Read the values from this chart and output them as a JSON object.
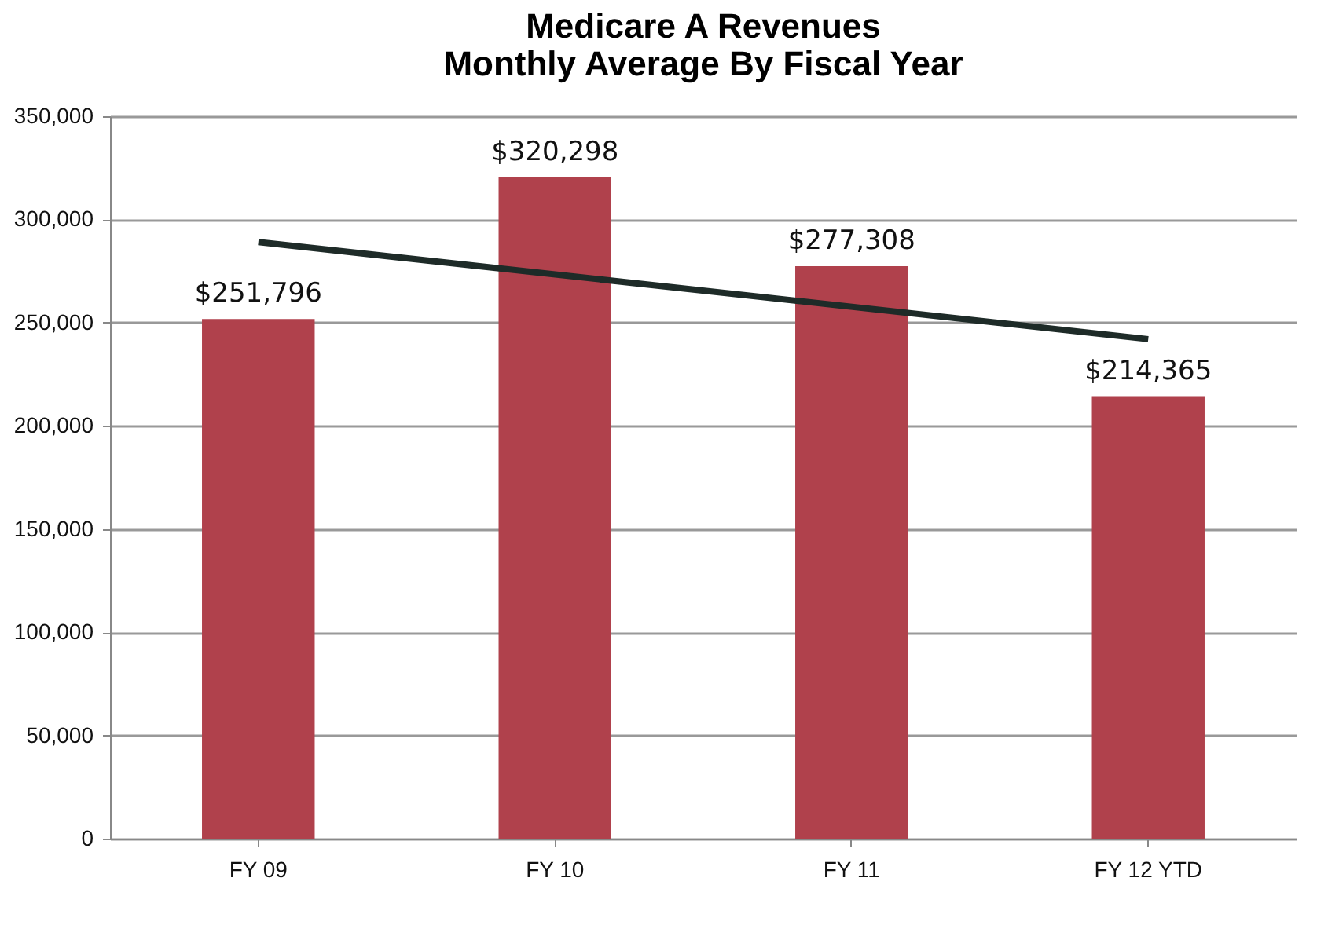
{
  "chart_data": {
    "type": "bar",
    "title": "Medicare A Revenues",
    "subtitle": "Monthly Average By Fiscal Year",
    "categories": [
      "FY 09",
      "FY 10",
      "FY 11",
      "FY 12 YTD"
    ],
    "series": [
      {
        "color": "#b0414c",
        "values": [
          251796,
          320298,
          277308,
          214365
        ],
        "value_labels": [
          "$251,796",
          "$320,298",
          "$277,308",
          "$214,365"
        ]
      },
      {
        "type": "line",
        "color": "#1e2b28",
        "x": [
          "FY 09",
          "FY 12 YTD"
        ],
        "values": [
          289000,
          242000
        ]
      }
    ],
    "ylim": [
      0,
      350000
    ],
    "yticks": [
      0,
      {
        "value": 50000,
        "label": "50,000"
      },
      {
        "value": 100000,
        "label": "100,000"
      },
      {
        "value": 150000,
        "label": "150,000"
      },
      {
        "value": 200000,
        "label": "200,000"
      },
      {
        "value": 250000,
        "label": "250,000"
      },
      {
        "value": 300000,
        "label": "300,000"
      },
      {
        "value": 350000,
        "label": "350,000"
      }
    ],
    "grid": "y"
  }
}
